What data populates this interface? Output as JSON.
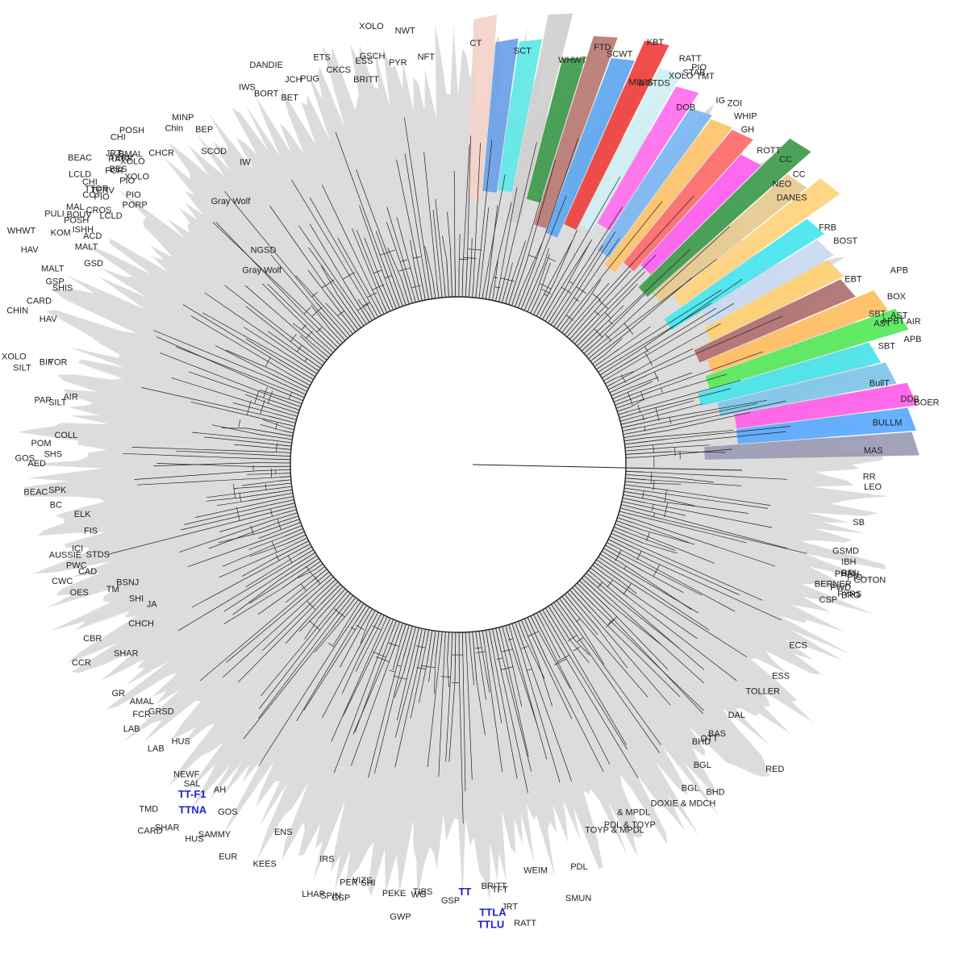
{
  "diagram": {
    "root_label": "Gray Wolf",
    "center_hub": "circular phylogenetic tree",
    "colors": {
      "background_fan": "#dcdcdc",
      "branch": "#222222",
      "highlight_text": "#1f1fd6"
    },
    "clades": [
      {
        "color": "#f3d2c8"
      },
      {
        "color": "#6aa0e8"
      },
      {
        "color": "#5fe7e7"
      },
      {
        "color": "#cfcfcf"
      },
      {
        "color": "#3c9a4a"
      },
      {
        "color": "#b97a73"
      },
      {
        "color": "#5da6f0"
      },
      {
        "color": "#ef3e3e"
      },
      {
        "color": "#cfeff3"
      },
      {
        "color": "#ff6eee"
      },
      {
        "color": "#7ab6f2"
      },
      {
        "color": "#ffc36b"
      },
      {
        "color": "#ff6a6a"
      },
      {
        "color": "#ff5df0"
      },
      {
        "color": "#3e9a4c"
      },
      {
        "color": "#e7c98f"
      },
      {
        "color": "#ffd27b"
      },
      {
        "color": "#46e6f0"
      },
      {
        "color": "#c9d8f2"
      },
      {
        "color": "#ffcf70"
      },
      {
        "color": "#b06f6f"
      },
      {
        "color": "#ffbe62"
      },
      {
        "color": "#56e85a"
      },
      {
        "color": "#48e3e8"
      },
      {
        "color": "#7fc6e8"
      },
      {
        "color": "#ff5ee8"
      },
      {
        "color": "#5aa8ff"
      },
      {
        "color": "#9a9ab2"
      }
    ],
    "labels": [
      {
        "text": "RATT",
        "a": 83.1,
        "r": 576
      },
      {
        "text": "JRT",
        "a": 84.4,
        "r": 554
      },
      {
        "text": "TFT",
        "a": 85.5,
        "r": 532
      },
      {
        "text": "TIBS",
        "a": 93.4,
        "r": 534
      },
      {
        "text": "PEKE",
        "a": 96.9,
        "r": 539
      },
      {
        "text": "SHI",
        "a": 101.1,
        "r": 532
      },
      {
        "text": "LHAP",
        "a": 107.1,
        "r": 561
      },
      {
        "text": "KEES",
        "a": 114.3,
        "r": 547
      },
      {
        "text": "EUR",
        "a": 119.2,
        "r": 561
      },
      {
        "text": "SAMMY",
        "a": 121.4,
        "r": 541
      },
      {
        "text": "HUS",
        "a": 124.0,
        "r": 564
      },
      {
        "text": "SHAR",
        "a": 127.3,
        "r": 570
      },
      {
        "text": "CARD",
        "a": 128.7,
        "r": 586
      },
      {
        "text": "TMD",
        "a": 130.8,
        "r": 569
      },
      {
        "text": "AH",
        "a": 125.3,
        "r": 498
      },
      {
        "text": "SAL",
        "a": 128.7,
        "r": 511
      },
      {
        "text": "HUS",
        "a": 133.8,
        "r": 480
      },
      {
        "text": "GRSD",
        "a": 138.7,
        "r": 469
      },
      {
        "text": "AMAL",
        "a": 141.8,
        "r": 480
      },
      {
        "text": "SHAR",
        "a": 149.1,
        "r": 462
      },
      {
        "text": "CHCH",
        "a": 152.0,
        "r": 427
      },
      {
        "text": "JA",
        "a": 154.7,
        "r": 413
      },
      {
        "text": "SHI",
        "a": 156.5,
        "r": 425
      },
      {
        "text": "TM",
        "a": 159.4,
        "r": 449
      },
      {
        "text": "BSNJ",
        "a": 159.3,
        "r": 423
      },
      {
        "text": "CAD",
        "a": 163.1,
        "r": 468
      },
      {
        "text": "ICI",
        "a": 167.0,
        "r": 477
      },
      {
        "text": "STDS",
        "a": 165.1,
        "r": 447
      },
      {
        "text": "FIS",
        "a": 169.2,
        "r": 455
      },
      {
        "text": "ELK",
        "a": 171.9,
        "r": 460
      },
      {
        "text": "SPK",
        "a": 175.9,
        "r": 487
      },
      {
        "text": "AED",
        "a": 179.8,
        "r": 511
      },
      {
        "text": "POM",
        "a": 182.6,
        "r": 505
      },
      {
        "text": "PAP",
        "a": 188.6,
        "r": 510
      },
      {
        "text": "BIF",
        "a": 193.8,
        "r": 517
      },
      {
        "text": "HAV",
        "a": 199.6,
        "r": 528
      },
      {
        "text": "MALT",
        "a": 206.1,
        "r": 544
      },
      {
        "text": "HAV",
        "a": 206.8,
        "r": 583
      },
      {
        "text": "WHWT",
        "a": 208.7,
        "r": 597
      },
      {
        "text": "KOM",
        "a": 210.6,
        "r": 558
      },
      {
        "text": "MALT",
        "a": 210.8,
        "r": 520
      },
      {
        "text": "PULI",
        "a": 212.2,
        "r": 577
      },
      {
        "text": "BOUV",
        "a": 214.0,
        "r": 548
      },
      {
        "text": "TERV",
        "a": 218.3,
        "r": 543
      },
      {
        "text": "BES",
        "a": 221.5,
        "r": 548
      },
      {
        "text": "TERV",
        "a": 223.1,
        "r": 552
      },
      {
        "text": "BMAL",
        "a": 224.3,
        "r": 546
      },
      {
        "text": "Gray Wolf",
        "a": 227.3,
        "r": 323
      },
      {
        "text": "NGSD",
        "a": 229.3,
        "r": 346
      },
      {
        "text": "Gray Wolf",
        "a": 231.4,
        "r": 413
      },
      {
        "text": "SCOD",
        "a": 233.3,
        "r": 480
      },
      {
        "text": "BEP",
        "a": 233.6,
        "r": 512
      },
      {
        "text": "IW",
        "a": 235.3,
        "r": 452
      },
      {
        "text": "IWS",
        "a": 241.6,
        "r": 528
      },
      {
        "text": "BORT",
        "a": 244.0,
        "r": 508
      },
      {
        "text": "BET",
        "a": 246.3,
        "r": 493
      },
      {
        "text": "DANDIE",
        "a": 246.2,
        "r": 538
      },
      {
        "text": "JCH",
        "a": 247.8,
        "r": 512
      },
      {
        "text": "PUG",
        "a": 250.1,
        "r": 505
      },
      {
        "text": "ETS",
        "a": 252.5,
        "r": 526
      },
      {
        "text": "CKCS",
        "a": 254.7,
        "r": 504
      },
      {
        "text": "BRITT",
        "a": 258.3,
        "r": 484
      },
      {
        "text": "ESS",
        "a": 258.0,
        "r": 508
      },
      {
        "text": "GSCH",
        "a": 259.8,
        "r": 511
      },
      {
        "text": "XOLO",
        "a": 260.3,
        "r": 548
      },
      {
        "text": "PYR",
        "a": 262.7,
        "r": 499
      },
      {
        "text": "NWT",
        "a": 264.3,
        "r": 537
      },
      {
        "text": "NFT",
        "a": 266.7,
        "r": 503
      },
      {
        "text": "CT",
        "a": 271.6,
        "r": 519
      },
      {
        "text": "SCT",
        "a": 277.7,
        "r": 514
      },
      {
        "text": "WHWT",
        "a": 284.0,
        "r": 513
      },
      {
        "text": "FTD",
        "a": 288.1,
        "r": 541
      },
      {
        "text": "SCWT",
        "a": 290.0,
        "r": 538
      },
      {
        "text": "MINIS",
        "a": 294.2,
        "r": 516
      },
      {
        "text": "& STDS",
        "a": 295.4,
        "r": 520
      },
      {
        "text": "KBT",
        "a": 294.2,
        "r": 570
      },
      {
        "text": "RATT",
        "a": 298.7,
        "r": 570
      },
      {
        "text": "XOLO",
        "a": 298.6,
        "r": 545
      },
      {
        "text": "STAB",
        "a": 300.0,
        "r": 557
      },
      {
        "text": "PIO",
        "a": 300.6,
        "r": 568
      },
      {
        "text": "TMT",
        "a": 301.7,
        "r": 562
      },
      {
        "text": "DOB",
        "a": 301.6,
        "r": 516
      },
      {
        "text": "IG",
        "a": 305.5,
        "r": 550
      },
      {
        "text": "WHIP",
        "a": 308.6,
        "r": 548
      },
      {
        "text": "ZOI",
        "a": 306.9,
        "r": 556
      },
      {
        "text": "GH",
        "a": 310.4,
        "r": 541
      },
      {
        "text": "ROTT",
        "a": 313.8,
        "r": 535
      },
      {
        "text": "NEO",
        "a": 318.5,
        "r": 520
      },
      {
        "text": "CC",
        "a": 316.7,
        "r": 547
      },
      {
        "text": "DANES",
        "a": 320.3,
        "r": 513
      },
      {
        "text": "CC",
        "a": 319.3,
        "r": 547
      },
      {
        "text": "FRB",
        "a": 327.0,
        "r": 533
      },
      {
        "text": "BOST",
        "a": 329.5,
        "r": 540
      },
      {
        "text": "EBT",
        "a": 334.7,
        "r": 530
      },
      {
        "text": "BOX",
        "a": 338.9,
        "r": 570
      },
      {
        "text": "APB",
        "a": 336.1,
        "r": 586
      },
      {
        "text": "SBT",
        "a": 340.2,
        "r": 541
      },
      {
        "text": "AST",
        "a": 341.6,
        "r": 543
      },
      {
        "text": "SBT",
        "a": 344.6,
        "r": 540
      },
      {
        "text": "APBT",
        "a": 341.6,
        "r": 553
      },
      {
        "text": "AST",
        "a": 341.3,
        "r": 566
      },
      {
        "text": "APB",
        "a": 344.6,
        "r": 573
      },
      {
        "text": "AIR",
        "a": 342.6,
        "r": 582
      },
      {
        "text": "BullT",
        "a": 349.2,
        "r": 519
      },
      {
        "text": "DDB",
        "a": 351.9,
        "r": 554
      },
      {
        "text": "BOER",
        "a": 352.6,
        "r": 570
      },
      {
        "text": "BULLM",
        "a": 354.6,
        "r": 516
      },
      {
        "text": "MAS",
        "a": 358.4,
        "r": 503
      },
      {
        "text": "RR",
        "a": 362.1,
        "r": 502
      },
      {
        "text": "LEO",
        "a": 363.5,
        "r": 504
      },
      {
        "text": "SB",
        "a": 368.7,
        "r": 495
      },
      {
        "text": "GSMD",
        "a": 373.4,
        "r": 477
      },
      {
        "text": "BERNER",
        "a": 378.9,
        "r": 467
      },
      {
        "text": "PHAH",
        "a": 376.6,
        "r": 487
      },
      {
        "text": "PWD",
        "a": 378.7,
        "r": 487
      },
      {
        "text": "IBH",
        "a": 374.6,
        "r": 491
      },
      {
        "text": "BRI",
        "a": 376.2,
        "r": 495
      },
      {
        "text": "PIO",
        "a": 376.5,
        "r": 503
      },
      {
        "text": "COTON",
        "a": 376.6,
        "r": 512
      },
      {
        "text": "BRG",
        "a": 379.2,
        "r": 503
      },
      {
        "text": "PYRS",
        "a": 379.2,
        "r": 498
      },
      {
        "text": "CSP",
        "a": 380.9,
        "r": 479
      },
      {
        "text": "ECS",
        "a": 389.0,
        "r": 469
      },
      {
        "text": "ESS",
        "a": 394.3,
        "r": 471
      },
      {
        "text": "TOLLER",
        "a": 398.6,
        "r": 456
      },
      {
        "text": "DAL",
        "a": 403.2,
        "r": 459
      },
      {
        "text": "BAS",
        "a": 407.4,
        "r": 458
      },
      {
        "text": "RED",
        "a": 405.0,
        "r": 539
      },
      {
        "text": "OTT",
        "a": 408.8,
        "r": 456
      },
      {
        "text": "BHD",
        "a": 410.1,
        "r": 452
      },
      {
        "text": "BGL",
        "a": 412.2,
        "r": 476
      },
      {
        "text": "BHD",
        "a": 413.1,
        "r": 512
      },
      {
        "text": "BGL",
        "a": 415.6,
        "r": 490
      },
      {
        "text": "DOXIE & MDCH",
        "a": 420.6,
        "r": 486
      },
      {
        "text": "PDL & TOYP",
        "a": 428.1,
        "r": 485
      },
      {
        "text": "& MPDL",
        "a": 425.6,
        "r": 477
      },
      {
        "text": "TOYP & MPDL",
        "a": 431.0,
        "r": 483
      },
      {
        "text": "PDL",
        "a": 434.5,
        "r": 521
      },
      {
        "text": "SMUN",
        "a": 436.2,
        "r": 557
      },
      {
        "text": "WEIM",
        "a": 440.9,
        "r": 513
      },
      {
        "text": "BRITT",
        "a": 446.9,
        "r": 527
      },
      {
        "text": "GSP",
        "a": 451.0,
        "r": 544
      },
      {
        "text": "WG",
        "a": 454.2,
        "r": 538
      },
      {
        "text": "GWP",
        "a": 455.9,
        "r": 567
      },
      {
        "text": "VIZS",
        "a": 461.6,
        "r": 530
      },
      {
        "text": "GSP",
        "a": 463.9,
        "r": 557
      },
      {
        "text": "PER",
        "a": 463.4,
        "r": 536
      },
      {
        "text": "SPIN",
        "a": 465.1,
        "r": 557
      },
      {
        "text": "IRS",
        "a": 467.3,
        "r": 516
      },
      {
        "text": "ENS",
        "a": 474.1,
        "r": 503
      },
      {
        "text": "GOS",
        "a": 482.2,
        "r": 513
      },
      {
        "text": "NEWF",
        "a": 489.6,
        "r": 503
      },
      {
        "text": "LAB",
        "a": 495.7,
        "r": 509
      },
      {
        "text": "LAB",
        "a": 500.0,
        "r": 515
      },
      {
        "text": "FCR",
        "a": 500.6,
        "r": 493
      },
      {
        "text": "GR",
        "a": 505.2,
        "r": 503
      },
      {
        "text": "CBR",
        "a": 513.6,
        "r": 493
      },
      {
        "text": "CCR",
        "a": 511.3,
        "r": 519
      },
      {
        "text": "OES",
        "a": 520.5,
        "r": 486
      },
      {
        "text": "PWC",
        "a": 524.4,
        "r": 478
      },
      {
        "text": "CWC",
        "a": 522.8,
        "r": 500
      },
      {
        "text": "AUSSIE",
        "a": 526.1,
        "r": 481
      },
      {
        "text": "BC",
        "a": 533.8,
        "r": 494
      },
      {
        "text": "BEAC",
        "a": 535.8,
        "r": 510
      },
      {
        "text": "SHS",
        "a": 541.1,
        "r": 491
      },
      {
        "text": "COLL",
        "a": 544.0,
        "r": 473
      },
      {
        "text": "GOS",
        "a": 540.5,
        "r": 525
      },
      {
        "text": "AIR",
        "a": 549.7,
        "r": 478
      },
      {
        "text": "SILT",
        "a": 548.6,
        "r": 491
      },
      {
        "text": "YOR",
        "a": 554.3,
        "r": 500
      },
      {
        "text": "SILT",
        "a": 552.4,
        "r": 542
      },
      {
        "text": "XOLO",
        "a": 553.5,
        "r": 558
      },
      {
        "text": "CHIN",
        "a": 559.4,
        "r": 565
      },
      {
        "text": "CARD",
        "a": 561.6,
        "r": 542
      },
      {
        "text": "GSP",
        "a": 564.6,
        "r": 537
      },
      {
        "text": "SHIS",
        "a": 564.3,
        "r": 524
      },
      {
        "text": "GSD",
        "a": 569.2,
        "r": 504
      },
      {
        "text": "ACD",
        "a": 572.4,
        "r": 523
      },
      {
        "text": "ISHH",
        "a": 572.5,
        "r": 536
      },
      {
        "text": "POSH",
        "a": 573.2,
        "r": 547
      },
      {
        "text": "MAL",
        "a": 574.3,
        "r": 561
      },
      {
        "text": "LCLD",
        "a": 576.2,
        "r": 516
      },
      {
        "text": "CROS",
        "a": 576.0,
        "r": 531
      },
      {
        "text": "PIO",
        "a": 577.2,
        "r": 543
      },
      {
        "text": "CO",
        "a": 576.4,
        "r": 558
      },
      {
        "text": "TTOR",
        "a": 578.0,
        "r": 550
      },
      {
        "text": "CHI",
        "a": 577.8,
        "r": 566
      },
      {
        "text": "LCLD",
        "a": 578.1,
        "r": 578
      },
      {
        "text": "BEAC",
        "a": 579.7,
        "r": 590
      },
      {
        "text": "PORP",
        "a": 579.6,
        "r": 500
      },
      {
        "text": "PIO",
        "a": 580.1,
        "r": 514
      },
      {
        "text": "PIO",
        "a": 581.0,
        "r": 531
      },
      {
        "text": "FCR",
        "a": 581.0,
        "r": 550
      },
      {
        "text": "XOLO",
        "a": 582.7,
        "r": 521
      },
      {
        "text": "XOLO",
        "a": 583.8,
        "r": 538
      },
      {
        "text": "RATT",
        "a": 582.8,
        "r": 553
      },
      {
        "text": "JRT",
        "a": 582.5,
        "r": 566
      },
      {
        "text": "CHI",
        "a": 584.3,
        "r": 576
      },
      {
        "text": "POSH",
        "a": 586.6,
        "r": 566
      },
      {
        "text": "CHCR",
        "a": 587.4,
        "r": 520
      },
      {
        "text": "Chin",
        "a": 590.5,
        "r": 536
      },
      {
        "text": "MINP",
        "a": 592.5,
        "r": 538
      }
    ],
    "highlighted_labels": [
      {
        "text": "TTLU",
        "a": 87.6,
        "r": 575
      },
      {
        "text": "TTLA",
        "a": 87.3,
        "r": 560
      },
      {
        "text": "TT",
        "a": 89.1,
        "r": 534
      },
      {
        "text": "TTNA",
        "a": 125.8,
        "r": 533
      },
      {
        "text": "TT-F1",
        "a": 127.1,
        "r": 518
      }
    ]
  }
}
